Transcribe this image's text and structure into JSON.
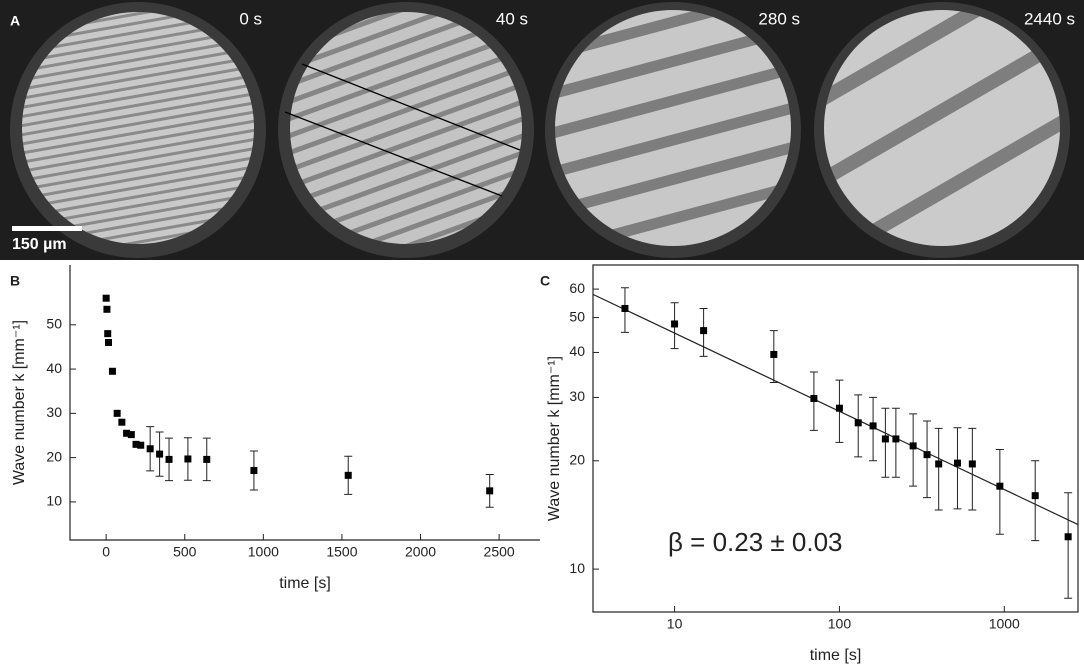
{
  "figure": {
    "panel_labels": [
      "A",
      "B",
      "C"
    ],
    "time_labels": [
      "0 s",
      "40 s",
      "280 s",
      "2440 s"
    ],
    "scale_bar": "150 µm"
  },
  "chart_data": [
    {
      "type": "scatter",
      "color": "#000000",
      "box": false,
      "x": [
        0,
        5,
        10,
        15,
        40,
        70,
        100,
        130,
        160,
        190,
        220,
        280,
        340,
        400,
        520,
        640,
        940,
        1540,
        2440
      ],
      "values": [
        56,
        53.5,
        48,
        46,
        39.5,
        30,
        28,
        25.5,
        25.2,
        23,
        22.8,
        22,
        20.8,
        19.6,
        19.7,
        19.6,
        17.1,
        16,
        12.5
      ],
      "errors": [
        null,
        null,
        null,
        null,
        null,
        null,
        null,
        null,
        null,
        null,
        null,
        5,
        5,
        4.8,
        4.8,
        4.8,
        4.4,
        4.3,
        3.7
      ],
      "xlim": [
        -230,
        2760
      ],
      "ylim": [
        1.4,
        63.5
      ],
      "xticks": [
        0,
        500,
        1000,
        1500,
        2000,
        2500
      ],
      "yticks": [
        10,
        20,
        30,
        40,
        50
      ],
      "xlabel": "time [s]",
      "ylabel": "Wave number k [mm⁻¹]"
    },
    {
      "type": "scatter",
      "color": "#000000",
      "box": true,
      "log_x": true,
      "log_y": true,
      "x": [
        5,
        10,
        15,
        40,
        70,
        100,
        130,
        160,
        190,
        220,
        280,
        340,
        400,
        520,
        640,
        940,
        1540,
        2440
      ],
      "values": [
        53,
        48,
        46,
        39.5,
        29.8,
        28,
        25.5,
        25,
        23,
        23,
        22,
        20.8,
        19.6,
        19.7,
        19.6,
        17,
        16,
        12.3
      ],
      "errors": [
        7.5,
        7,
        7,
        6.5,
        5.5,
        5.5,
        5,
        5,
        5,
        5,
        5,
        5,
        5,
        5,
        5,
        4.5,
        4,
        4
      ],
      "fit": {
        "x": [
          3.2,
          2800
        ],
        "y": [
          58,
          13.3
        ]
      },
      "xlim": [
        3.2,
        2800
      ],
      "ylim": [
        7.6,
        70
      ],
      "xticks": [
        10,
        100,
        1000
      ],
      "yticks": [
        10,
        20,
        30,
        40,
        50,
        60
      ],
      "xlabel": "time [s]",
      "ylabel": "Wave number k [mm⁻¹]",
      "annotation": "β = 0.23 ± 0.03"
    }
  ]
}
